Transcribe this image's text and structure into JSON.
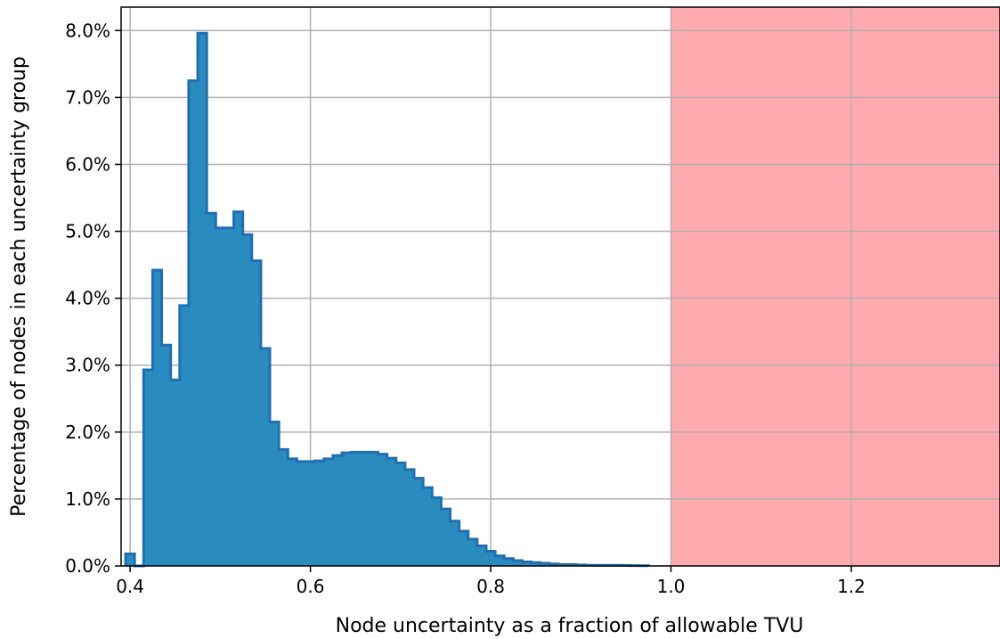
{
  "chart_data": {
    "type": "bar",
    "title": "",
    "xlabel": "Node uncertainty as a fraction of allowable TVU",
    "ylabel": "Percentage of nodes in each uncertainty group",
    "xlim": [
      0.39,
      1.365
    ],
    "ylim": [
      0,
      8.35
    ],
    "grid": true,
    "xticks": [
      0.4,
      0.6,
      0.8,
      1.0,
      1.2
    ],
    "xtick_labels": [
      "0.4",
      "0.6",
      "0.8",
      "1.0",
      "1.2"
    ],
    "yticks": [
      0,
      1,
      2,
      3,
      4,
      5,
      6,
      7,
      8
    ],
    "ytick_labels": [
      "0.0%",
      "1.0%",
      "2.0%",
      "3.0%",
      "4.0%",
      "5.0%",
      "6.0%",
      "7.0%",
      "8.0%"
    ],
    "bin_width": 0.01,
    "bin_edges_start": 0.395,
    "values": [
      0.18,
      0.0,
      2.93,
      4.42,
      3.3,
      2.78,
      3.89,
      7.25,
      7.96,
      5.27,
      5.05,
      5.05,
      5.29,
      4.95,
      4.56,
      3.25,
      2.15,
      1.74,
      1.6,
      1.56,
      1.56,
      1.57,
      1.6,
      1.65,
      1.69,
      1.7,
      1.7,
      1.7,
      1.67,
      1.61,
      1.54,
      1.44,
      1.31,
      1.17,
      1.02,
      0.85,
      0.67,
      0.52,
      0.4,
      0.3,
      0.22,
      0.15,
      0.11,
      0.08,
      0.06,
      0.05,
      0.04,
      0.03,
      0.02,
      0.02,
      0.015,
      0.01,
      0.01,
      0.01,
      0.01,
      0.008,
      0.005,
      0.003
    ],
    "fill_color": "#2a8bbf",
    "edge_color": "#1f6fb2",
    "shaded_region": {
      "x_from": 1.0,
      "x_to": 1.365,
      "color": "#ffaaae"
    }
  }
}
